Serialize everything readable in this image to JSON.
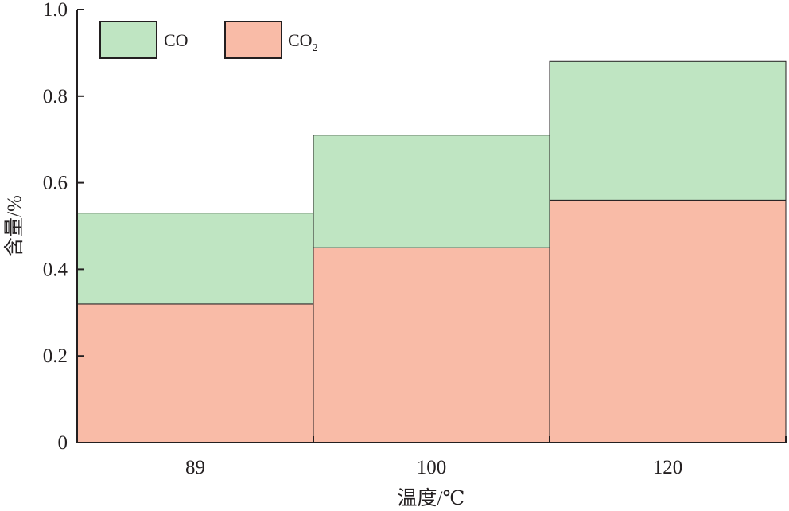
{
  "chart_data": {
    "type": "bar",
    "stacked": true,
    "categories": [
      "89",
      "100",
      "120"
    ],
    "series": [
      {
        "name": "CO2",
        "values": [
          0.32,
          0.45,
          0.56
        ],
        "color": "#f9bba7"
      },
      {
        "name": "CO",
        "values": [
          0.21,
          0.26,
          0.32
        ],
        "color": "#bfe5c2"
      }
    ],
    "xlabel": "温度/℃",
    "ylabel": "含量/%",
    "ylim": [
      0,
      1.0
    ],
    "yticks": [
      {
        "value": 0,
        "label": "0"
      },
      {
        "value": 0.2,
        "label": "0.2"
      },
      {
        "value": 0.4,
        "label": "0.4"
      },
      {
        "value": 0.6,
        "label": "0.6"
      },
      {
        "value": 0.8,
        "label": "0.8"
      },
      {
        "value": 1.0,
        "label": "1.0"
      }
    ],
    "legend": {
      "placement": "top-left",
      "items": [
        {
          "label": "CO",
          "color": "#bfe5c2"
        },
        {
          "label": "CO",
          "subscript": "2",
          "color": "#f9bba7"
        }
      ]
    },
    "grid": false
  }
}
